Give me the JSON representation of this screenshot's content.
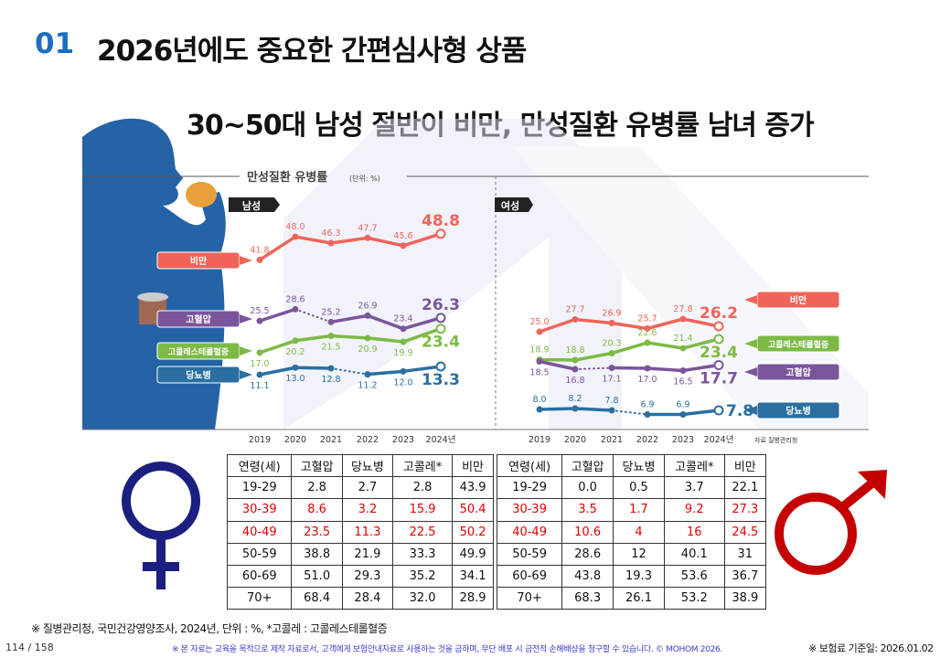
{
  "header": {
    "number": "01",
    "title": "2026년에도 중요한 간편심사형 상품"
  },
  "subtitle": "30~50대 남성 절반이 비만, 만성질환 유병률 남녀 증가",
  "colors": {
    "obesity": "#f0645a",
    "bp": "#7b559b",
    "chol": "#7dba45",
    "diabetes": "#2a6fa0",
    "accent": "#1b6ec2",
    "female": "#1a1f80",
    "male": "#c40000"
  },
  "chart_data": {
    "type": "line",
    "title": "만성질환 유병률",
    "unit": "(단위: %)",
    "x": [
      "2019",
      "2020",
      "2021",
      "2022",
      "2023",
      "2024년"
    ],
    "source": "자료 질병관리청",
    "panels": [
      {
        "name": "남성",
        "series": [
          {
            "name": "비만",
            "key": "obesity",
            "values": [
              41.8,
              48.0,
              46.3,
              47.7,
              45.6,
              48.8
            ],
            "dotted_segments": []
          },
          {
            "name": "고혈압",
            "key": "bp",
            "values": [
              25.5,
              28.6,
              25.2,
              26.9,
              23.4,
              26.3
            ],
            "dotted_segments": [
              1
            ]
          },
          {
            "name": "고콜레스테롤혈증",
            "key": "chol",
            "values": [
              17.0,
              20.2,
              21.5,
              20.9,
              19.9,
              23.4
            ],
            "dotted_segments": []
          },
          {
            "name": "당뇨병",
            "key": "diabetes",
            "values": [
              11.1,
              13.0,
              12.8,
              11.2,
              12.0,
              13.3
            ],
            "dotted_segments": [
              2
            ]
          }
        ]
      },
      {
        "name": "여성",
        "series": [
          {
            "name": "비만",
            "key": "obesity",
            "values": [
              25.0,
              27.7,
              26.9,
              25.7,
              27.8,
              26.2
            ],
            "dotted_segments": []
          },
          {
            "name": "고콜레스테롤혈증",
            "key": "chol",
            "values": [
              18.9,
              18.8,
              20.3,
              22.6,
              21.4,
              23.4
            ],
            "dotted_segments": []
          },
          {
            "name": "고혈압",
            "key": "bp",
            "values": [
              18.5,
              16.8,
              17.1,
              17.0,
              16.5,
              17.7
            ],
            "dotted_segments": [
              1
            ]
          },
          {
            "name": "당뇨병",
            "key": "diabetes",
            "values": [
              8.0,
              8.2,
              7.8,
              6.9,
              6.9,
              7.8
            ],
            "dotted_segments": [
              2
            ]
          }
        ]
      }
    ]
  },
  "tables": {
    "headers": [
      "연령(세)",
      "고혈압",
      "당뇨병",
      "고콜레*",
      "비만"
    ],
    "female": [
      [
        "19-29",
        "2.8",
        "2.7",
        "2.8",
        "43.9"
      ],
      [
        "30-39",
        "8.6",
        "3.2",
        "15.9",
        "50.4"
      ],
      [
        "40-49",
        "23.5",
        "11.3",
        "22.5",
        "50.2"
      ],
      [
        "50-59",
        "38.8",
        "21.9",
        "33.3",
        "49.9"
      ],
      [
        "60-69",
        "51.0",
        "29.3",
        "35.2",
        "34.1"
      ],
      [
        "70+",
        "68.4",
        "28.4",
        "32.0",
        "28.9"
      ]
    ],
    "male": [
      [
        "19-29",
        "0.0",
        "0.5",
        "3.7",
        "22.1"
      ],
      [
        "30-39",
        "3.5",
        "1.7",
        "9.2",
        "27.3"
      ],
      [
        "40-49",
        "10.6",
        "4",
        "16",
        "24.5"
      ],
      [
        "50-59",
        "28.6",
        "12",
        "40.1",
        "31"
      ],
      [
        "60-69",
        "43.8",
        "19.3",
        "53.6",
        "36.7"
      ],
      [
        "70+",
        "68.3",
        "26.1",
        "53.2",
        "38.9"
      ]
    ],
    "highlight_rows": [
      "30-39",
      "40-49"
    ]
  },
  "footer": {
    "source": "※ 질병관리청, 국민건강영양조사, 2024년, 단위 : %, *고콜레 : 고콜레스테롤혈증",
    "page": "114 / 158",
    "copyright": "※ 본 자료는 교육을 목적으로 제작 자료로서, 고객에게 보험안내자료로 사용하는 것을 금하며, 무단 배포 시 금전적 손해배상을 청구할 수 있습니다. © MOHOM 2026.",
    "date": "※ 보험료 기준일: 2026.01.02"
  }
}
